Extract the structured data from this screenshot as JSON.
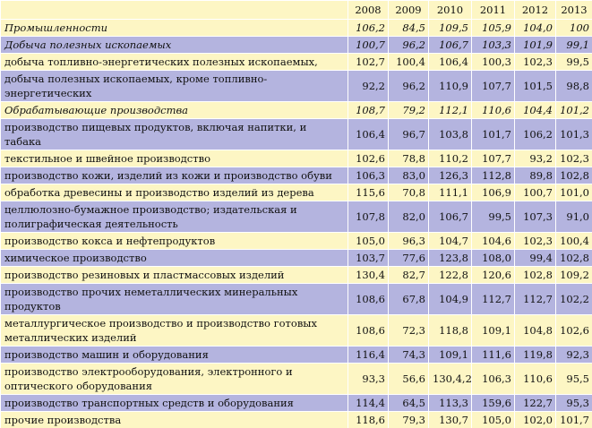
{
  "table": {
    "header": [
      "2008",
      "2009",
      "2010",
      "2011",
      "2012",
      "2013"
    ],
    "rows": [
      {
        "label": "Промышленности",
        "values": [
          "106,2",
          "84,5",
          "109,5",
          "105,9",
          "104,0",
          "100"
        ]
      },
      {
        "label": "Добыча полезных ископаемых",
        "values": [
          "100,7",
          "96,2",
          "106,7",
          "103,3",
          "101,9",
          "99,1"
        ]
      },
      {
        "label": "добыча топливно-энергетических    полезных ископаемых,",
        "values": [
          "102,7",
          "100,4",
          "106,4",
          "100,3",
          "102,3",
          "99,5"
        ]
      },
      {
        "label": "добыча полезных ископаемых,   кроме топливно-энергетических",
        "values": [
          "92,2",
          "96,2",
          "110,9",
          "107,7",
          "101,5",
          "98,8"
        ]
      },
      {
        "label": "Обрабатывающие производства",
        "values": [
          "108,7",
          "79,2",
          "112,1",
          "110,6",
          "104,4",
          "101,2"
        ]
      },
      {
        "label": "производство пищевых продуктов, включая напитки, и табака",
        "values": [
          "106,4",
          "96,7",
          "103,8",
          "101,7",
          "106,2",
          "101,3"
        ]
      },
      {
        "label": "текстильное и швейное производство",
        "values": [
          "102,6",
          "78,8",
          "110,2",
          "107,7",
          "93,2",
          "102,3"
        ]
      },
      {
        "label": "производство кожи, изделий из кожи и производство обуви",
        "values": [
          "106,3",
          "83,0",
          "126,3",
          "112,8",
          "89,8",
          "102,8"
        ]
      },
      {
        "label": "обработка древесины и производство изделий из дерева",
        "values": [
          "115,6",
          "70,8",
          "111,1",
          "106,9",
          "100,7",
          "101,0"
        ]
      },
      {
        "label": "целлюлозно-бумажное производство; издательская и полиграфическая деятельность",
        "values": [
          "107,8",
          "82,0",
          "106,7",
          "99,5",
          "107,3",
          "91,0"
        ]
      },
      {
        "label": "производство кокса и нефтепродуктов",
        "values": [
          "105,0",
          "96,3",
          "104,7",
          "104,6",
          "102,3",
          "100,4"
        ]
      },
      {
        "label": "химическое производство",
        "values": [
          "103,7",
          "77,6",
          "123,8",
          "108,0",
          "99,4",
          "102,8"
        ]
      },
      {
        "label": "производство резиновых и пластмассовых изделий",
        "values": [
          "130,4",
          "82,7",
          "122,8",
          "120,6",
          "102,8",
          "109,2"
        ]
      },
      {
        "label": "производство прочих неметаллических минеральных продуктов",
        "values": [
          "108,6",
          "67,8",
          "104,9",
          "112,7",
          "112,7",
          "102,2"
        ]
      },
      {
        "label": "металлургическое производство и производство готовых металлических изделий",
        "values": [
          "108,6",
          "72,3",
          "118,8",
          "109,1",
          "104,8",
          "102,6"
        ]
      },
      {
        "label": "производство машин и оборудования",
        "values": [
          "116,4",
          "74,3",
          "109,1",
          "111,6",
          "119,8",
          "92,3"
        ]
      },
      {
        "label": "производство электрооборудования, электронного и оптического оборудования",
        "values": [
          "93,3",
          "56,6",
          "130,4,2",
          "106,3",
          "110,6",
          "95,5"
        ]
      },
      {
        "label": "производство транспортных средств и оборудования",
        "values": [
          "114,4",
          "64,5",
          "113,3",
          "159,6",
          "122,7",
          "95,3"
        ]
      },
      {
        "label": "прочие производства",
        "values": [
          "118,6",
          "79,3",
          "130,7",
          "105,0",
          "102,0",
          "101,7"
        ]
      }
    ]
  }
}
